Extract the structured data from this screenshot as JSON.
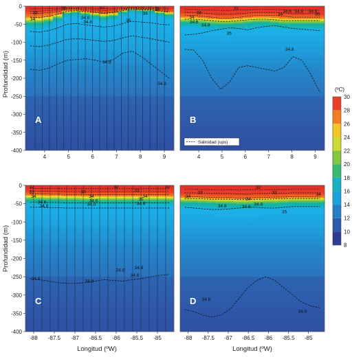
{
  "chart_data": {
    "type": "heatmap",
    "ylabel": "Profundidad (m)",
    "xlabel": "Longitud (ºW)",
    "ylim": [
      -400,
      0
    ],
    "yticks": [
      0,
      -50,
      -100,
      -150,
      -200,
      -250,
      -300,
      -350,
      -400
    ],
    "colorbar": {
      "unit": "(ºC)",
      "min": 8,
      "max": 30,
      "ticks": [
        30,
        28,
        26,
        24,
        22,
        20,
        18,
        16,
        14,
        12,
        10,
        8
      ],
      "stops": [
        {
          "v": 8,
          "c": "#2c2f86"
        },
        {
          "v": 10,
          "c": "#2f4a9e"
        },
        {
          "v": 12,
          "c": "#2f6bb8"
        },
        {
          "v": 14,
          "c": "#1f93d3"
        },
        {
          "v": 16,
          "c": "#1bb1e8"
        },
        {
          "v": 18,
          "c": "#14b39a"
        },
        {
          "v": 20,
          "c": "#5bbd4a"
        },
        {
          "v": 22,
          "c": "#a8cf3b"
        },
        {
          "v": 24,
          "c": "#f3e62b"
        },
        {
          "v": 26,
          "c": "#f7a21e"
        },
        {
          "v": 28,
          "c": "#ef5a24"
        },
        {
          "v": 30,
          "c": "#e3262a"
        }
      ]
    },
    "legend": {
      "label": "Salinidad (ups)",
      "position": "bottom-left of panel B"
    },
    "panels": [
      {
        "id": "A",
        "label": "A",
        "xlim": [
          3.2,
          9.4
        ],
        "xticks": [
          4,
          5,
          6,
          7,
          8,
          9
        ],
        "stations": [
          3.6,
          3.9,
          4.2,
          4.5,
          4.8,
          5.1,
          5.4,
          5.7,
          6.0,
          6.3,
          6.6,
          6.9,
          7.2,
          7.5,
          7.8,
          8.1,
          8.4,
          8.7,
          9.0
        ],
        "thermocline_depth": [
          -42,
          -42,
          -38,
          -30,
          -18,
          -16,
          -20,
          -24,
          -28,
          -25,
          -15,
          -10,
          -12,
          -12,
          -18,
          -22
        ],
        "warm_layer_depth": [
          -14,
          -14,
          -12,
          -10,
          -6,
          -6,
          -8,
          -10,
          -12,
          -10,
          -6,
          -4,
          -5,
          -5,
          -8,
          -10
        ],
        "isohalines": [
          {
            "label": "35",
            "depth": [
              -70,
              -72,
              -68,
              -60,
              -50,
              -48,
              -52,
              -55,
              -58,
              -55,
              -48,
              -42,
              -44,
              -46,
              -50,
              -52
            ]
          },
          {
            "label": "34.8",
            "depth": [
              -175,
              -178,
              -172,
              -160,
              -150,
              -148,
              -146,
              -150,
              -155,
              -148,
              -130,
              -125,
              -140,
              -160,
              -180,
              -200
            ]
          },
          {
            "label": "34.8",
            "depth": [
              -110,
              -112,
              -108,
              -100,
              -92,
              -90,
              -92,
              -95,
              -98,
              -95,
              -88,
              -82,
              -86,
              -90,
              -95,
              -100
            ]
          },
          {
            "label": "34.6",
            "depth": [
              -30,
              -32,
              -28,
              -22,
              -14,
              -13,
              -16,
              -18,
              -20,
              -18,
              -12,
              -9,
              -10,
              -10,
              -14,
              -16
            ]
          }
        ],
        "isohaline_labels": [
          {
            "text": "32",
            "x": 4.8,
            "y": -6
          },
          {
            "text": "33",
            "x": 3.6,
            "y": -18
          },
          {
            "text": "34",
            "x": 3.5,
            "y": -36
          },
          {
            "text": "34.6",
            "x": 5.7,
            "y": -32
          },
          {
            "text": "34.8",
            "x": 5.8,
            "y": -44
          },
          {
            "text": "35",
            "x": 7.5,
            "y": -40
          },
          {
            "text": "34.8",
            "x": 6.6,
            "y": -155
          },
          {
            "text": "34.8",
            "x": 8.9,
            "y": -215
          },
          {
            "text": "34",
            "x": 8.2,
            "y": -20
          },
          {
            "text": "33",
            "x": 8.7,
            "y": -8
          },
          {
            "text": "32",
            "x": 6.4,
            "y": -4
          }
        ]
      },
      {
        "id": "B",
        "label": "B",
        "xlim": [
          3.2,
          9.4
        ],
        "xticks": [
          4,
          5,
          6,
          7,
          8,
          9
        ],
        "stations": [],
        "thermocline_depth": [
          -40,
          -40,
          -42,
          -44,
          -45,
          -45,
          -44,
          -42,
          -40,
          -40,
          -42,
          -44,
          -44,
          -44,
          -44,
          -44
        ],
        "warm_layer_depth": [
          -18,
          -18,
          -20,
          -22,
          -24,
          -24,
          -22,
          -20,
          -18,
          -18,
          -18,
          -20,
          -22,
          -22,
          -22,
          -22
        ],
        "isohalines": [
          {
            "label": "35",
            "depth": [
              -80,
              -78,
              -74,
              -68,
              -64,
              -60,
              -62,
              -66,
              -60,
              -56,
              -54,
              -58,
              -62,
              -64,
              -66,
              -68
            ]
          },
          {
            "label": "34.8",
            "depth": [
              -120,
              -122,
              -150,
              -200,
              -230,
              -210,
              -170,
              -165,
              -170,
              -175,
              -180,
              -170,
              -140,
              -150,
              -190,
              -240
            ]
          },
          {
            "label": "34.6",
            "depth": [
              -36,
              -36,
              -38,
              -40,
              -42,
              -42,
              -40,
              -38,
              -36,
              -36,
              -38,
              -40,
              -40,
              -40,
              -40,
              -40
            ]
          }
        ],
        "isohaline_labels": [
          {
            "text": "33",
            "x": 4.0,
            "y": -18
          },
          {
            "text": "34",
            "x": 3.7,
            "y": -30
          },
          {
            "text": "34.6",
            "x": 3.8,
            "y": -44
          },
          {
            "text": "34.8",
            "x": 4.3,
            "y": -52
          },
          {
            "text": "35",
            "x": 5.3,
            "y": -75
          },
          {
            "text": "32",
            "x": 5.6,
            "y": -5
          },
          {
            "text": "34",
            "x": 7.5,
            "y": -22
          },
          {
            "text": "34.6",
            "x": 7.8,
            "y": -14
          },
          {
            "text": "34.8",
            "x": 8.3,
            "y": -14
          },
          {
            "text": "34.6",
            "x": 8.9,
            "y": -14
          },
          {
            "text": "35",
            "x": 9.1,
            "y": -22
          },
          {
            "text": "34.8",
            "x": 7.9,
            "y": -120
          }
        ]
      },
      {
        "id": "C",
        "label": "C",
        "xlim": [
          -88.2,
          -84.6
        ],
        "xticks": [
          -88,
          -87.5,
          -87,
          -86.5,
          -86,
          -85.5,
          -85
        ],
        "stations": [
          -88.0,
          -87.8,
          -87.6,
          -87.4,
          -87.2,
          -87.0,
          -86.8,
          -86.6,
          -86.4,
          -86.2,
          -86.0,
          -85.8,
          -85.6,
          -85.4,
          -85.2,
          -85.0,
          -84.8
        ],
        "thermocline_depth": [
          -35,
          -35,
          -36,
          -36,
          -37,
          -37,
          -38,
          -38,
          -38,
          -38,
          -38,
          -38,
          -38,
          -38,
          -38,
          -38
        ],
        "warm_layer_depth": [
          -16,
          -16,
          -17,
          -17,
          -18,
          -18,
          -18,
          -18,
          -18,
          -18,
          -18,
          -18,
          -18,
          -18,
          -18,
          -18
        ],
        "isohalines": [
          {
            "label": "34.6",
            "depth": [
              -46,
              -46,
              -47,
              -47,
              -48,
              -48,
              -48,
              -48,
              -48,
              -48,
              -48,
              -48,
              -48,
              -48,
              -48,
              -48
            ]
          },
          {
            "label": "34.8",
            "depth": [
              -60,
              -60,
              -61,
              -61,
              -62,
              -62,
              -62,
              -62,
              -62,
              -62,
              -62,
              -62,
              -62,
              -62,
              -62,
              -62
            ]
          },
          {
            "label": "34.8",
            "depth": [
              -255,
              -258,
              -262,
              -266,
              -268,
              -268,
              -266,
              -262,
              -258,
              -260,
              -262,
              -258,
              -255,
              -250,
              -246,
              -244
            ]
          }
        ],
        "isohaline_labels": [
          {
            "text": "32",
            "x": -88.05,
            "y": -4
          },
          {
            "text": "33",
            "x": -88.05,
            "y": -18
          },
          {
            "text": "34",
            "x": -88.0,
            "y": -30
          },
          {
            "text": "34.6",
            "x": -87.8,
            "y": -46
          },
          {
            "text": "34.8",
            "x": -87.75,
            "y": -56
          },
          {
            "text": "33",
            "x": -86.8,
            "y": -18
          },
          {
            "text": "34",
            "x": -86.6,
            "y": -30
          },
          {
            "text": "34.6",
            "x": -86.55,
            "y": -42
          },
          {
            "text": "34.8",
            "x": -86.6,
            "y": -52
          },
          {
            "text": "32",
            "x": -86.0,
            "y": -4
          },
          {
            "text": "33",
            "x": -85.5,
            "y": -14
          },
          {
            "text": "34",
            "x": -85.3,
            "y": -30
          },
          {
            "text": "35",
            "x": -85.4,
            "y": -38
          },
          {
            "text": "34.8",
            "x": -85.4,
            "y": -50
          },
          {
            "text": "34.6",
            "x": -85.45,
            "y": -225
          },
          {
            "text": "34.8",
            "x": -85.9,
            "y": -232
          },
          {
            "text": "34.8",
            "x": -85.55,
            "y": -246
          },
          {
            "text": "34.8",
            "x": -86.65,
            "y": -262
          },
          {
            "text": "34.8",
            "x": -87.95,
            "y": -255
          },
          {
            "text": "32",
            "x": -84.75,
            "y": -4
          }
        ]
      },
      {
        "id": "D",
        "label": "D",
        "xlim": [
          -88.2,
          -84.6
        ],
        "xticks": [
          -88,
          -87.5,
          -87,
          -86.5,
          -86,
          -85.5,
          -85
        ],
        "stations": [],
        "thermocline_depth": [
          -42,
          -42,
          -43,
          -44,
          -45,
          -45,
          -46,
          -46,
          -45,
          -44,
          -44,
          -43,
          -42,
          -42,
          -42,
          -42
        ],
        "warm_layer_depth": [
          -22,
          -22,
          -23,
          -24,
          -24,
          -24,
          -25,
          -25,
          -24,
          -24,
          -23,
          -23,
          -22,
          -22,
          -22,
          -22
        ],
        "isohalines": [
          {
            "label": "34",
            "depth": [
              -36,
              -36,
              -37,
              -38,
              -38,
              -38,
              -39,
              -39,
              -38,
              -38,
              -37,
              -37,
              -36,
              -36,
              -36,
              -36
            ]
          },
          {
            "label": "34.6",
            "depth": [
              -60,
              -62,
              -64,
              -66,
              -66,
              -64,
              -62,
              -60,
              -60,
              -62,
              -62,
              -60,
              -58,
              -58,
              -58,
              -58
            ]
          },
          {
            "label": "34.8",
            "depth": [
              -340,
              -345,
              -355,
              -360,
              -355,
              -340,
              -310,
              -280,
              -260,
              -250,
              -260,
              -280,
              -300,
              -320,
              -330,
              -335
            ]
          }
        ],
        "isohaline_labels": [
          {
            "text": "33",
            "x": -87.7,
            "y": -20
          },
          {
            "text": "34",
            "x": -88.0,
            "y": -30
          },
          {
            "text": "34.6",
            "x": -87.15,
            "y": -56
          },
          {
            "text": "32",
            "x": -86.25,
            "y": -6
          },
          {
            "text": "33",
            "x": -85.85,
            "y": -20
          },
          {
            "text": "34",
            "x": -86.5,
            "y": -38
          },
          {
            "text": "34.8",
            "x": -86.25,
            "y": -52
          },
          {
            "text": "34.6",
            "x": -86.55,
            "y": -58
          },
          {
            "text": "35",
            "x": -85.6,
            "y": -72
          },
          {
            "text": "34",
            "x": -84.75,
            "y": -24
          },
          {
            "text": "34.8",
            "x": -87.55,
            "y": -312
          },
          {
            "text": "34.8",
            "x": -85.15,
            "y": -345
          }
        ]
      }
    ]
  }
}
